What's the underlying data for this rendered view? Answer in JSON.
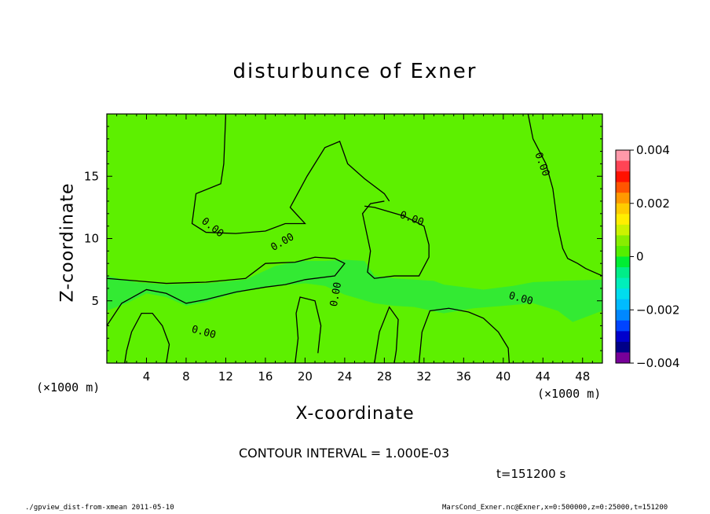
{
  "chart_data": {
    "type": "heatmap",
    "title": "disturbunce of Exner",
    "xlabel": "X-coordinate",
    "ylabel": "Z-coordinate",
    "x_unit": "(×1000 m)",
    "y_unit": "(×1000 m)",
    "xlim": [
      0,
      50
    ],
    "ylim": [
      0,
      20
    ],
    "x_ticks": [
      4,
      8,
      12,
      16,
      20,
      24,
      28,
      32,
      36,
      40,
      44,
      48
    ],
    "y_ticks": [
      5,
      10,
      15
    ],
    "contour_labels": [
      "0.00",
      "0.00",
      "0.00",
      "0.00",
      "0.00",
      "0.00",
      "0.00"
    ],
    "colorbar": {
      "ticks": [
        "0.004",
        "0.002",
        "0",
        "−0.002",
        "−0.004"
      ],
      "range": [
        -0.004,
        0.004
      ]
    },
    "fill_levels_colors": [
      "#ff99aa",
      "#ff4455",
      "#ff1100",
      "#ff5500",
      "#ff9900",
      "#ffcc00",
      "#ffee00",
      "#ccf200",
      "#88ee00",
      "#55ee00",
      "#00ee33",
      "#00ee88",
      "#00eebb",
      "#00ddee",
      "#00bbff",
      "#0088ff",
      "#0044ff",
      "#0000cc",
      "#000088",
      "#770099"
    ],
    "field_colors": {
      "positive": "#5df000",
      "near_zero": "#33ea33"
    },
    "contour_interval": "CONTOUR INTERVAL = 1.000E-03",
    "time": "t=151200 s"
  },
  "footer": {
    "left": "./gpview_dist-from-xmean  2011-05-10",
    "right": "MarsCond_Exner.nc@Exner,x=0:500000,z=0:25000,t=151200"
  }
}
